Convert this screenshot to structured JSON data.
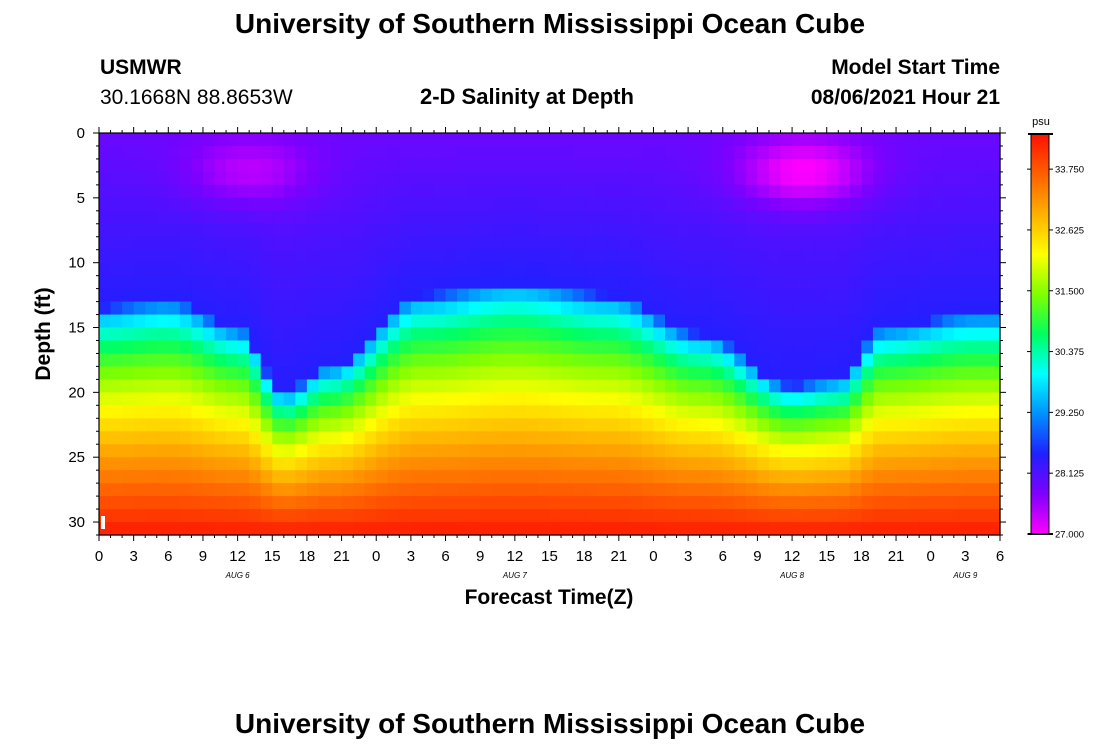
{
  "page": {
    "title_top": "University of Southern Mississippi Ocean Cube",
    "title_bottom": "University of Southern Mississippi Ocean Cube",
    "station_name": "USMWR",
    "station_coords": "30.1668N  88.8653W",
    "model_start_label": "Model Start Time",
    "model_start_value": "08/06/2021 Hour 21"
  },
  "chart_data": {
    "type": "heatmap",
    "title": "2-D Salinity at Depth",
    "xlabel": "Forecast Time(Z)",
    "ylabel": "Depth (ft)",
    "ylim": [
      0,
      31
    ],
    "y_ticks": [
      0,
      5,
      10,
      15,
      20,
      25,
      30
    ],
    "x_hours_range": [
      0,
      78
    ],
    "x_tick_labels": [
      "0",
      "3",
      "6",
      "9",
      "12",
      "15",
      "18",
      "21",
      "0",
      "3",
      "6",
      "9",
      "12",
      "15",
      "18",
      "21",
      "0",
      "3",
      "6",
      "9",
      "12",
      "15",
      "18",
      "21",
      "0",
      "3",
      "6"
    ],
    "date_labels": [
      {
        "label": "AUG  6",
        "hour": 12
      },
      {
        "label": "AUG  7",
        "hour": 36
      },
      {
        "label": "AUG  8",
        "hour": 60
      },
      {
        "label": "AUG  9",
        "hour": 75
      }
    ],
    "colorbar": {
      "unit": "psu",
      "min": 27.0,
      "max": 34.4,
      "tick_values": [
        27.0,
        28.125,
        29.25,
        30.375,
        31.5,
        32.625,
        33.75
      ],
      "tick_labels": [
        "27.000",
        "28.125",
        "29.250",
        "30.375",
        "31.500",
        "32.625",
        "33.750"
      ],
      "colors": [
        "#ff00ff",
        "#8000ff",
        "#2020ff",
        "#0090ff",
        "#00ffff",
        "#00ff60",
        "#80ff00",
        "#ffff00",
        "#ffb000",
        "#ff6000",
        "#ff1000"
      ]
    },
    "halocline_depth_ft": {
      "hours": [
        0,
        6,
        12,
        16,
        20,
        28,
        36,
        44,
        52,
        60,
        64,
        68,
        76,
        78
      ],
      "values": [
        13.5,
        13.0,
        15.0,
        20.0,
        18.0,
        12.5,
        11.5,
        12.5,
        15.5,
        19.5,
        19.0,
        15.0,
        14.0,
        14.0
      ]
    },
    "min_salinity_points": [
      {
        "hour": 13,
        "depth_ft": 3,
        "value": 27.4
      },
      {
        "hour": 61,
        "depth_ft": 3,
        "value": 27.0
      }
    ],
    "bottom_salinity_psu": 34.3
  }
}
